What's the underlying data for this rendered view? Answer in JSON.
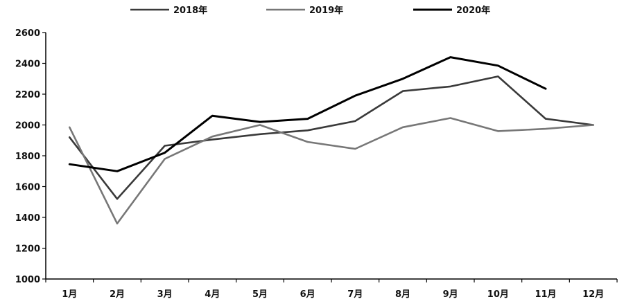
{
  "chart_data": {
    "type": "line",
    "categories": [
      "1月",
      "2月",
      "3月",
      "4月",
      "5月",
      "6月",
      "7月",
      "8月",
      "9月",
      "10月",
      "11月",
      "12月"
    ],
    "ylim": [
      1000,
      2600
    ],
    "yticks": [
      1000,
      1200,
      1400,
      1600,
      1800,
      2000,
      2200,
      2400,
      2600
    ],
    "legend_position": "top",
    "grid": false,
    "series": [
      {
        "name": "2018年",
        "color": "#3a3a3a",
        "values": [
          1920,
          1520,
          1865,
          1905,
          1940,
          1965,
          2025,
          2220,
          2250,
          2315,
          2040,
          2000
        ]
      },
      {
        "name": "2019年",
        "color": "#777777",
        "values": [
          1985,
          1360,
          1780,
          1925,
          2000,
          1890,
          1845,
          1985,
          2045,
          1960,
          1975,
          2000
        ]
      },
      {
        "name": "2020年",
        "color": "#000000",
        "values": [
          1745,
          1700,
          1820,
          2060,
          2020,
          2040,
          2190,
          2300,
          2440,
          2385,
          2235,
          null
        ]
      }
    ]
  }
}
